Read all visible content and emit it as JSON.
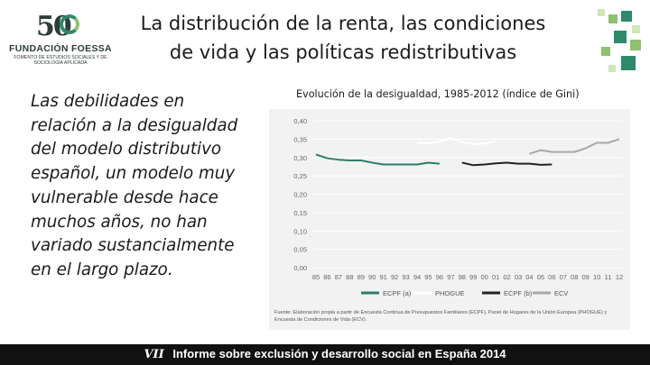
{
  "logo": {
    "number": "50",
    "name": "FUNDACIÓN FOESSA",
    "subtitle": "Fomento de Estudios Sociales y de Sociología Aplicada"
  },
  "header": {
    "title_line1": "La distribución de la renta, las condiciones",
    "title_line2": "de vida y las políticas redistributivas"
  },
  "body_text": "Las debilidades en relación a la desigualdad del modelo distributivo español, un modelo muy vulnerable desde hace muchos años, no han variado sustancialmente en el largo plazo.",
  "source_note": "Fuente: Elaboración propia a partir de Encuesta Continua de Presupuestos Familiares (ECPF), Panel de Hogares de la Unión Europea (PHOGUE) y Encuesta de Condiciones de Vida (ECV).",
  "footer": {
    "number": "VII",
    "text": "Informe sobre exclusión y desarrollo social en España 2014"
  },
  "colors": {
    "ecpf_a": "#2a7f6a",
    "phogue": "#ffffff",
    "ecpf_b": "#222222",
    "ecv": "#a8a8a8",
    "footer_bg": "#111111"
  },
  "chart_data": {
    "type": "line",
    "title": "Evolución de la desigualdad, 1985-2012 (índice de Gini)",
    "xlabel": "",
    "ylabel": "",
    "ylim": [
      0,
      0.4
    ],
    "yticks": [
      "0,40",
      "0,35",
      "0,30",
      "0,25",
      "0,20",
      "0,15",
      "0,10",
      "0,05",
      "0,00"
    ],
    "ytick_values": [
      0.4,
      0.35,
      0.3,
      0.25,
      0.2,
      0.15,
      0.1,
      0.05,
      0
    ],
    "categories": [
      "85",
      "86",
      "87",
      "88",
      "89",
      "90",
      "91",
      "92",
      "93",
      "94",
      "95",
      "96",
      "97",
      "98",
      "99",
      "00",
      "01",
      "02",
      "03",
      "04",
      "05",
      "06",
      "07",
      "08",
      "09",
      "10",
      "11",
      "12"
    ],
    "series": [
      {
        "name": "ECPF (a)",
        "color": "#2a7f6a",
        "x": [
          "85",
          "86",
          "87",
          "88",
          "89",
          "90",
          "91",
          "92",
          "93",
          "94",
          "95",
          "96"
        ],
        "values": [
          0.308,
          0.298,
          0.294,
          0.292,
          0.292,
          0.286,
          0.281,
          0.281,
          0.281,
          0.281,
          0.286,
          0.283
        ]
      },
      {
        "name": "PHOGUE",
        "color": "#ffffff",
        "x": [
          "94",
          "95",
          "96",
          "97",
          "98",
          "99",
          "00",
          "01"
        ],
        "values": [
          0.34,
          0.339,
          0.343,
          0.353,
          0.342,
          0.336,
          0.338,
          0.345
        ]
      },
      {
        "name": "ECPF (b)",
        "color": "#222222",
        "x": [
          "98",
          "99",
          "00",
          "01",
          "02",
          "03",
          "04",
          "05",
          "06"
        ],
        "values": [
          0.286,
          0.279,
          0.281,
          0.284,
          0.286,
          0.283,
          0.283,
          0.28,
          0.281
        ]
      },
      {
        "name": "ECV",
        "color": "#a8a8a8",
        "x": [
          "04",
          "05",
          "06",
          "07",
          "08",
          "09",
          "10",
          "11",
          "12"
        ],
        "values": [
          0.31,
          0.32,
          0.315,
          0.315,
          0.315,
          0.325,
          0.34,
          0.34,
          0.35
        ]
      }
    ]
  }
}
